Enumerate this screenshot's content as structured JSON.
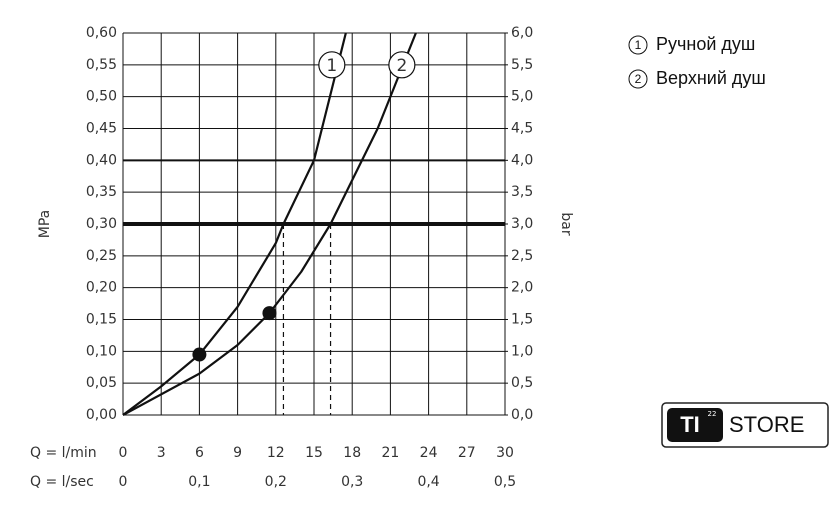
{
  "chart_data": {
    "type": "line",
    "xlabel": "Q = l/min",
    "x2label": "Q = l/sec",
    "ylabel": "MPa",
    "y2label": "bar",
    "xlim": [
      0,
      30
    ],
    "xticks": [
      0,
      3,
      6,
      9,
      12,
      15,
      18,
      21,
      24,
      27,
      30
    ],
    "x2lim": [
      0,
      0.5
    ],
    "x2ticks": [
      0,
      {
        "value": 0.1,
        "label": "0,1"
      },
      {
        "value": 0.2,
        "label": "0,2"
      },
      {
        "value": 0.3,
        "label": "0,3"
      },
      {
        "value": 0.4,
        "label": "0,4"
      },
      {
        "value": 0.5,
        "label": "0,5"
      }
    ],
    "ylim": [
      0,
      0.6
    ],
    "yticks": [
      {
        "value": 0,
        "label": "0,00"
      },
      {
        "value": 0.05,
        "label": "0,05"
      },
      {
        "value": 0.1,
        "label": "0,10"
      },
      {
        "value": 0.15,
        "label": "0,15"
      },
      {
        "value": 0.2,
        "label": "0,20"
      },
      {
        "value": 0.25,
        "label": "0,25"
      },
      {
        "value": 0.3,
        "label": "0,30"
      },
      {
        "value": 0.35,
        "label": "0,35"
      },
      {
        "value": 0.4,
        "label": "0,40"
      },
      {
        "value": 0.45,
        "label": "0,45"
      },
      {
        "value": 0.5,
        "label": "0,50"
      },
      {
        "value": 0.55,
        "label": "0,55"
      },
      {
        "value": 0.6,
        "label": "0,60"
      }
    ],
    "y2lim": [
      0,
      6
    ],
    "y2ticks": [
      {
        "value": 0,
        "label": "0,0"
      },
      {
        "value": 0.5,
        "label": "0,5"
      },
      {
        "value": 1,
        "label": "1,0"
      },
      {
        "value": 1.5,
        "label": "1,5"
      },
      {
        "value": 2,
        "label": "2,0"
      },
      {
        "value": 2.5,
        "label": "2,5"
      },
      {
        "value": 3,
        "label": "3,0"
      },
      {
        "value": 3.5,
        "label": "3,5"
      },
      {
        "value": 4,
        "label": "4,0"
      },
      {
        "value": 4.5,
        "label": "4,5"
      },
      {
        "value": 5,
        "label": "5,0"
      },
      {
        "value": 5.5,
        "label": "5,5"
      },
      {
        "value": 6,
        "label": "6,0"
      }
    ],
    "grid": true,
    "color": "#111",
    "highlight_y": [
      0.3,
      0.4
    ],
    "series": [
      {
        "name": "Ручной душ",
        "label": "1",
        "x": [
          0,
          3,
          6,
          9,
          12,
          12.6,
          15,
          17.5
        ],
        "values": [
          0,
          0.045,
          0.095,
          0.17,
          0.27,
          0.3,
          0.4,
          0.6
        ]
      },
      {
        "name": "Верхний душ",
        "label": "2",
        "x": [
          0,
          6,
          9,
          11.5,
          14,
          16.3,
          20,
          23
        ],
        "values": [
          0,
          0.065,
          0.11,
          0.16,
          0.225,
          0.3,
          0.45,
          0.6
        ]
      }
    ],
    "points": [
      {
        "x": 6,
        "y": 0.095
      },
      {
        "x": 11.5,
        "y": 0.16
      }
    ],
    "dashed_x": [
      12.6,
      16.3
    ]
  },
  "logo": {
    "mark": "TI",
    "superscript": "22",
    "text": "STORE"
  }
}
